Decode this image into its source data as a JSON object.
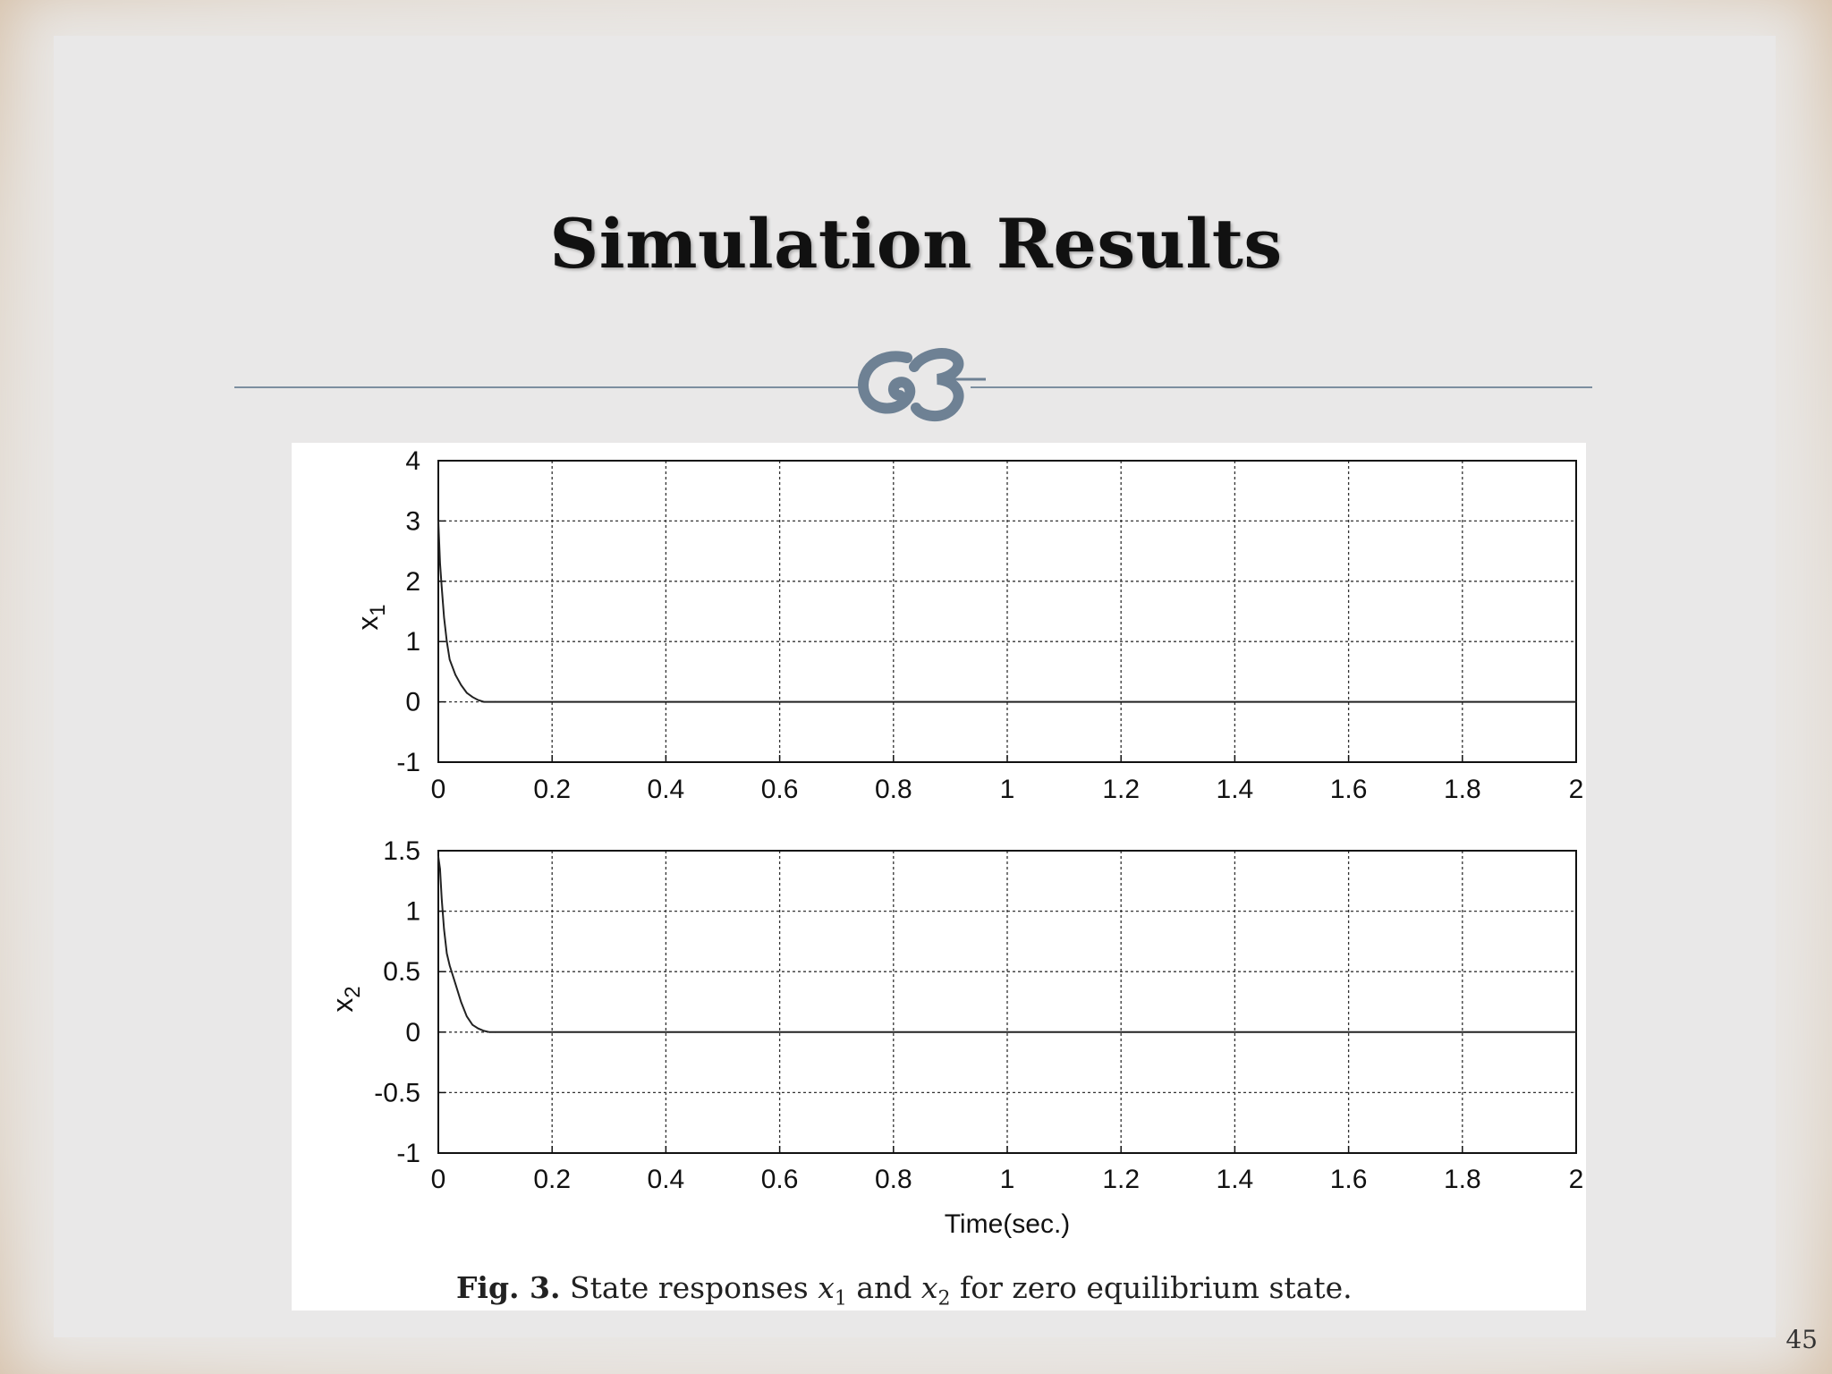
{
  "slide": {
    "title": "Simulation Results",
    "page_number": "45",
    "ornament": "divider-flourish-icon",
    "colors": {
      "rule": "#7d8fa0",
      "ornament": "#6e8194",
      "background": "#e9e8e8",
      "border": "#dccbb6"
    }
  },
  "caption": {
    "label": "Fig. 3.",
    "text_a": "State responses",
    "var1": "x",
    "sub1": "1",
    "text_b": "and",
    "var2": "x",
    "sub2": "2",
    "text_c": "for zero equilibrium state."
  },
  "chart_data": [
    {
      "type": "line",
      "ylabel": "x",
      "ylabel_sub": "1",
      "xlabel": "",
      "xlim": [
        0,
        2
      ],
      "ylim": [
        -1,
        4
      ],
      "x_ticks": [
        "0",
        "0.2",
        "0.4",
        "0.6",
        "0.8",
        "1",
        "1.2",
        "1.4",
        "1.6",
        "1.8",
        "2"
      ],
      "y_ticks": [
        "-1",
        "0",
        "1",
        "2",
        "3",
        "4"
      ],
      "grid": true,
      "series": [
        {
          "x": [
            0,
            0.003,
            0.006,
            0.01,
            0.015,
            0.02,
            0.03,
            0.04,
            0.05,
            0.06,
            0.07,
            0.08,
            0.1,
            0.2,
            0.5,
            1.0,
            1.5,
            2.0
          ],
          "y": [
            3.0,
            2.3,
            1.9,
            1.4,
            1.0,
            0.7,
            0.45,
            0.28,
            0.15,
            0.08,
            0.03,
            0.0,
            0.0,
            0.0,
            0.0,
            0.0,
            0.0,
            0.0
          ]
        }
      ]
    },
    {
      "type": "line",
      "ylabel": "x",
      "ylabel_sub": "2",
      "xlabel": "Time(sec.)",
      "xlim": [
        0,
        2
      ],
      "ylim": [
        -1,
        1.5
      ],
      "x_ticks": [
        "0",
        "0.2",
        "0.4",
        "0.6",
        "0.8",
        "1",
        "1.2",
        "1.4",
        "1.6",
        "1.8",
        "2"
      ],
      "y_ticks": [
        "-1",
        "-0.5",
        "0",
        "0.5",
        "1",
        "1.5"
      ],
      "grid": true,
      "series": [
        {
          "x": [
            0,
            0.003,
            0.006,
            0.01,
            0.015,
            0.02,
            0.03,
            0.04,
            0.05,
            0.06,
            0.07,
            0.08,
            0.09,
            0.1,
            0.2,
            0.5,
            1.0,
            1.5,
            2.0
          ],
          "y": [
            1.45,
            1.35,
            1.1,
            0.85,
            0.65,
            0.55,
            0.4,
            0.25,
            0.13,
            0.06,
            0.03,
            0.01,
            0.0,
            0.0,
            0.0,
            0.0,
            0.0,
            0.0,
            0.0
          ]
        }
      ]
    }
  ]
}
